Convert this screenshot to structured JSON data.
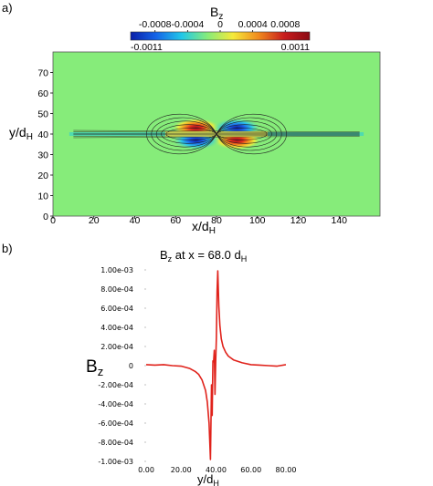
{
  "chart_data": [
    {
      "panel": "a)",
      "type": "heatmap",
      "title": "B",
      "title_sub": "z",
      "colorbar": {
        "range": [
          -0.0011,
          0.0011
        ],
        "min_label": "-0.0011",
        "max_label": "0.0011",
        "ticks": [
          "-0.0008",
          "-0.0004",
          "0",
          "0.0004",
          "0.0008"
        ],
        "tick_values": [
          -0.0008,
          -0.0004,
          0,
          0.0004,
          0.0008
        ],
        "colors": [
          "#0a1fa8",
          "#1565e8",
          "#21c8e8",
          "#86ec7a",
          "#f5ea3a",
          "#f08a1e",
          "#c81d1d",
          "#8b0a14"
        ]
      },
      "xlabel": "x/d",
      "xlabel_sub": "H",
      "ylabel": "y/d",
      "ylabel_sub": "H",
      "xlim": [
        0,
        160
      ],
      "ylim": [
        0,
        80
      ],
      "xticks": [
        "0",
        "20",
        "40",
        "60",
        "80",
        "100",
        "120",
        "140"
      ],
      "xtick_values": [
        0,
        20,
        40,
        60,
        80,
        100,
        120,
        140
      ],
      "yticks": [
        "0",
        "10",
        "20",
        "30",
        "40",
        "50",
        "60",
        "70"
      ],
      "ytick_values": [
        0,
        10,
        20,
        30,
        40,
        50,
        60,
        70
      ],
      "background_value": 0,
      "lobes": [
        {
          "x": 70,
          "y": 43,
          "value": 0.0011
        },
        {
          "x": 90,
          "y": 37,
          "value": 0.0011
        },
        {
          "x": 90,
          "y": 43,
          "value": -0.0011
        },
        {
          "x": 70,
          "y": 37,
          "value": -0.0011
        }
      ],
      "current_sheet_y": 40,
      "null_point": {
        "x": 80,
        "y": 40
      }
    },
    {
      "panel": "b)",
      "type": "line",
      "title": "B",
      "title_sub": "z",
      "title_rest": " at x = 68.0 d",
      "title_rest_sub": "H",
      "xlabel": "y/d",
      "xlabel_sub": "H",
      "ylabel": "B",
      "ylabel_sub": "z",
      "xlim": [
        0,
        80
      ],
      "ylim": [
        -0.001,
        0.001
      ],
      "xticks": [
        "0.00",
        "20.00",
        "40.00",
        "60.00",
        "80.00"
      ],
      "xtick_values": [
        0,
        20,
        40,
        60,
        80
      ],
      "yticks": [
        "1.00e-03",
        "8.00e-04",
        "6.00e-04",
        "4.00e-04",
        "2.00e-04",
        "0",
        "-2.00e-04",
        "-4.00e-04",
        "-6.00e-04",
        "-8.00e-04",
        "-1.00e-03"
      ],
      "ytick_values": [
        0.001,
        0.0008,
        0.0006,
        0.0004,
        0.0002,
        0,
        -0.0002,
        -0.0004,
        -0.0006,
        -0.0008,
        -0.001
      ],
      "series": [
        {
          "color": "#e0221b",
          "x": [
            0,
            5,
            10,
            15,
            20,
            25,
            28,
            30,
            32,
            34,
            35,
            36,
            36.8,
            37.4,
            37.8,
            38.2,
            38.6,
            39.0,
            39.4,
            39.8,
            40.2,
            40.6,
            41.0,
            41.6,
            42.2,
            43.0,
            44,
            45.5,
            47,
            50,
            55,
            60,
            65,
            70,
            75,
            80
          ],
          "y": [
            1e-05,
            5e-06,
            1e-05,
            0,
            -5e-06,
            -3e-05,
            -6e-05,
            -9e-05,
            -0.00015,
            -0.00026,
            -0.00038,
            -0.0006,
            -0.00098,
            -0.0002,
            -0.00052,
            5e-05,
            4e-05,
            0.00016,
            -0.0003,
            4e-05,
            0.0003,
            0.00078,
            0.00099,
            0.00062,
            0.00042,
            0.00028,
            0.0002,
            0.00014,
            0.0001,
            6e-05,
            3e-05,
            1e-05,
            5e-06,
            0,
            -5e-06,
            1e-05
          ]
        }
      ]
    }
  ]
}
